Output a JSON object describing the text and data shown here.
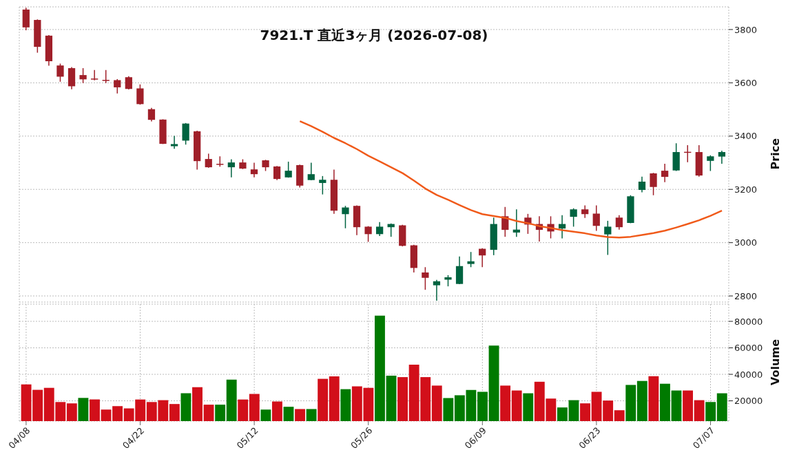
{
  "chart_data": [
    {
      "type": "candlestick",
      "title": "7921.T  直近3ヶ月  (2026-07-08)",
      "ylabel": "Price",
      "categories": [
        null,
        null,
        null,
        null,
        null,
        null,
        null,
        null,
        null,
        null,
        null,
        null,
        null,
        null,
        null,
        null,
        null,
        null,
        null,
        null,
        null,
        null,
        null,
        null,
        null,
        null,
        null,
        null,
        null,
        null,
        null,
        null,
        null,
        null,
        null,
        null,
        null,
        null,
        null,
        null,
        null,
        null,
        null,
        null,
        null,
        null,
        null,
        null,
        null,
        null,
        null,
        null,
        null,
        null,
        null,
        null,
        null,
        null,
        null,
        null,
        null,
        null
      ],
      "ohlc": [
        [
          3875,
          3882,
          3797,
          3808
        ],
        [
          3836,
          3838,
          3713,
          3735
        ],
        [
          3777,
          3779,
          3664,
          3681
        ],
        [
          3665,
          3672,
          3604,
          3623
        ],
        [
          3655,
          3659,
          3576,
          3587
        ],
        [
          3629,
          3655,
          3599,
          3613
        ],
        [
          3616,
          3648,
          3609,
          3614
        ],
        [
          3611,
          3648,
          3599,
          3609
        ],
        [
          3610,
          3614,
          3560,
          3583
        ],
        [
          3621,
          3625,
          3575,
          3577
        ],
        [
          3579,
          3594,
          3518,
          3520
        ],
        [
          3501,
          3506,
          3455,
          3461
        ],
        [
          3462,
          3463,
          3370,
          3371
        ],
        [
          3362,
          3401,
          3352,
          3370
        ],
        [
          3383,
          3449,
          3368,
          3447
        ],
        [
          3418,
          3420,
          3274,
          3306
        ],
        [
          3314,
          3334,
          3281,
          3283
        ],
        [
          3296,
          3324,
          3285,
          3294
        ],
        [
          3283,
          3313,
          3245,
          3301
        ],
        [
          3301,
          3313,
          3276,
          3278
        ],
        [
          3275,
          3300,
          3245,
          3257
        ],
        [
          3309,
          3311,
          3269,
          3283
        ],
        [
          3286,
          3288,
          3235,
          3239
        ],
        [
          3245,
          3304,
          3244,
          3270
        ],
        [
          3291,
          3293,
          3207,
          3214
        ],
        [
          3235,
          3300,
          3234,
          3257
        ],
        [
          3224,
          3250,
          3181,
          3236
        ],
        [
          3236,
          3274,
          3108,
          3120
        ],
        [
          3107,
          3138,
          3054,
          3132
        ],
        [
          3138,
          3140,
          3028,
          3058
        ],
        [
          3060,
          3062,
          3003,
          3032
        ],
        [
          3032,
          3077,
          3025,
          3060
        ],
        [
          3058,
          3072,
          3022,
          3070
        ],
        [
          3065,
          3067,
          2986,
          2988
        ],
        [
          2990,
          2992,
          2888,
          2905
        ],
        [
          2888,
          2908,
          2823,
          2868
        ],
        [
          2840,
          2860,
          2782,
          2855
        ],
        [
          2861,
          2878,
          2836,
          2870
        ],
        [
          2845,
          2948,
          2844,
          2912
        ],
        [
          2920,
          2965,
          2908,
          2930
        ],
        [
          2977,
          2979,
          2908,
          2952
        ],
        [
          2973,
          3094,
          2953,
          3070
        ],
        [
          3099,
          3134,
          3022,
          3048
        ],
        [
          3038,
          3125,
          3022,
          3049
        ],
        [
          3094,
          3108,
          3033,
          3068
        ],
        [
          3070,
          3099,
          3004,
          3048
        ],
        [
          3070,
          3099,
          3016,
          3042
        ],
        [
          3053,
          3103,
          3016,
          3070
        ],
        [
          3097,
          3129,
          3060,
          3125
        ],
        [
          3125,
          3140,
          3093,
          3107
        ],
        [
          3109,
          3140,
          3044,
          3063
        ],
        [
          3031,
          3082,
          2954,
          3060
        ],
        [
          3094,
          3103,
          3049,
          3058
        ],
        [
          3074,
          3178,
          3073,
          3174
        ],
        [
          3198,
          3248,
          3189,
          3229
        ],
        [
          3260,
          3262,
          3178,
          3209
        ],
        [
          3270,
          3296,
          3227,
          3247
        ],
        [
          3271,
          3373,
          3269,
          3340
        ],
        [
          3341,
          3366,
          3302,
          3339
        ],
        [
          3340,
          3366,
          3248,
          3252
        ],
        [
          3307,
          3328,
          3269,
          3324
        ],
        [
          3323,
          3345,
          3296,
          3340
        ]
      ],
      "colors": [
        "#a01f29",
        "#a01f29",
        "#a01f29",
        "#a01f29",
        "#a01f29",
        "#a01f29",
        "#a01f29",
        "#a01f29",
        "#a01f29",
        "#a01f29",
        "#a01f29",
        "#a01f29",
        "#a01f29",
        "#006340",
        "#006340",
        "#a01f29",
        "#a01f29",
        "#a01f29",
        "#006340",
        "#a01f29",
        "#a01f29",
        "#a01f29",
        "#a01f29",
        "#006340",
        "#a01f29",
        "#006340",
        "#006340",
        "#a01f29",
        "#006340",
        "#a01f29",
        "#a01f29",
        "#006340",
        "#006340",
        "#a01f29",
        "#a01f29",
        "#a01f29",
        "#006340",
        "#006340",
        "#006340",
        "#006340",
        "#a01f29",
        "#006340",
        "#a01f29",
        "#006340",
        "#a01f29",
        "#a01f29",
        "#a01f29",
        "#006340",
        "#006340",
        "#a01f29",
        "#a01f29",
        "#006340",
        "#a01f29",
        "#006340",
        "#006340",
        "#a01f29",
        "#a01f29",
        "#006340",
        "#a01f29",
        "#a01f29",
        "#006340",
        "#006340"
      ],
      "series": [
        {
          "type": "line",
          "color": "#f05a1a",
          "values": [
            null,
            null,
            null,
            null,
            null,
            null,
            null,
            null,
            null,
            null,
            null,
            null,
            null,
            null,
            null,
            null,
            null,
            null,
            null,
            null,
            null,
            null,
            null,
            null,
            3456,
            3437,
            3416,
            3393,
            3373,
            3351,
            3326,
            3305,
            3283,
            3261,
            3233,
            3203,
            3179,
            3161,
            3141,
            3122,
            3107,
            3100,
            3093,
            3081,
            3073,
            3062,
            3055,
            3047,
            3041,
            3035,
            3027,
            3021,
            3019,
            3022,
            3029,
            3036,
            3045,
            3057,
            3070,
            3084,
            3101,
            3120
          ]
        }
      ],
      "ylim": [
        2777,
        3885
      ],
      "yticks": [
        2800,
        3000,
        3200,
        3400,
        3600,
        3800
      ],
      "grid": true,
      "tick_labels": "y"
    },
    {
      "type": "bar",
      "ylabel": "Volume",
      "categories": [
        "04/08",
        null,
        null,
        null,
        null,
        null,
        null,
        null,
        null,
        null,
        "04/22",
        null,
        null,
        null,
        null,
        null,
        null,
        null,
        null,
        null,
        "05/12",
        null,
        null,
        null,
        null,
        null,
        null,
        null,
        null,
        null,
        "05/26",
        null,
        null,
        null,
        null,
        null,
        null,
        null,
        null,
        null,
        "06/09",
        null,
        null,
        null,
        null,
        null,
        null,
        null,
        null,
        null,
        "06/23",
        null,
        null,
        null,
        null,
        null,
        null,
        null,
        null,
        null,
        "07/07",
        null
      ],
      "values": [
        32400,
        28300,
        29800,
        19100,
        18100,
        22200,
        21000,
        13400,
        16000,
        14300,
        21000,
        19100,
        20500,
        17600,
        25700,
        30300,
        17100,
        17100,
        36000,
        21000,
        25200,
        13400,
        19500,
        15500,
        13800,
        13800,
        36600,
        38400,
        28800,
        30900,
        29800,
        84300,
        39000,
        37900,
        47300,
        37900,
        31500,
        22100,
        24200,
        28200,
        26800,
        61700,
        31500,
        27800,
        25700,
        34400,
        21700,
        15000,
        20500,
        18100,
        26800,
        20200,
        12900,
        32000,
        35000,
        38600,
        32900,
        27800,
        27800,
        20500,
        19100,
        25700
      ],
      "colors": [
        "#d20f1a",
        "#d20f1a",
        "#d20f1a",
        "#d20f1a",
        "#d20f1a",
        "#007a00",
        "#d20f1a",
        "#d20f1a",
        "#d20f1a",
        "#d20f1a",
        "#d20f1a",
        "#d20f1a",
        "#d20f1a",
        "#d20f1a",
        "#007a00",
        "#d20f1a",
        "#d20f1a",
        "#007a00",
        "#007a00",
        "#d20f1a",
        "#d20f1a",
        "#007a00",
        "#d20f1a",
        "#007a00",
        "#d20f1a",
        "#007a00",
        "#d20f1a",
        "#d20f1a",
        "#007a00",
        "#d20f1a",
        "#d20f1a",
        "#007a00",
        "#007a00",
        "#d20f1a",
        "#d20f1a",
        "#d20f1a",
        "#d20f1a",
        "#007a00",
        "#007a00",
        "#007a00",
        "#007a00",
        "#007a00",
        "#d20f1a",
        "#d20f1a",
        "#007a00",
        "#d20f1a",
        "#d20f1a",
        "#007a00",
        "#007a00",
        "#d20f1a",
        "#d20f1a",
        "#d20f1a",
        "#d20f1a",
        "#007a00",
        "#007a00",
        "#d20f1a",
        "#007a00",
        "#007a00",
        "#d20f1a",
        "#d20f1a",
        "#007a00",
        "#007a00"
      ],
      "ylim": [
        4700,
        93000
      ],
      "yticks": [
        20000,
        40000,
        60000,
        80000
      ],
      "grid": true
    }
  ]
}
